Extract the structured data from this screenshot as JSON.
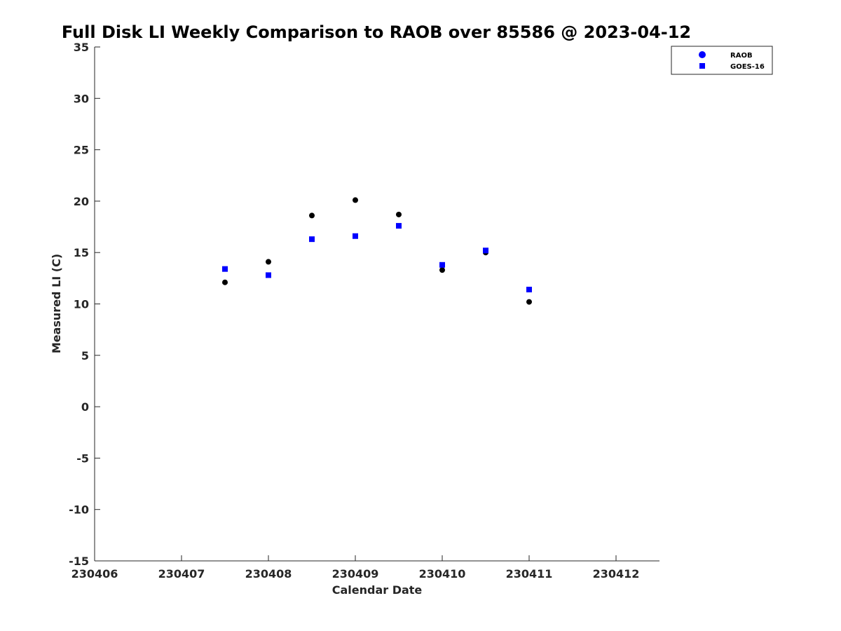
{
  "chart_data": {
    "type": "scatter",
    "title": "Full Disk LI Weekly Comparison to RAOB over 85586 @ 2023-04-12",
    "xlabel": "Calendar Date",
    "ylabel": "Measured LI (C)",
    "xlim": [
      230406,
      230412.5
    ],
    "ylim": [
      -15,
      35
    ],
    "xticks": [
      230406,
      230407,
      230408,
      230409,
      230410,
      230411,
      230412
    ],
    "xtick_labels": [
      "230406",
      "230407",
      "230408",
      "230409",
      "230410",
      "230411",
      "230412"
    ],
    "yticks": [
      -15,
      -10,
      -5,
      0,
      5,
      10,
      15,
      20,
      25,
      30,
      35
    ],
    "ytick_labels": [
      "-15",
      "-10",
      "-5",
      "0",
      "5",
      "10",
      "15",
      "20",
      "25",
      "30",
      "35"
    ],
    "grid": false,
    "legend_position": "top-right",
    "series": [
      {
        "name": "RAOB",
        "marker": "circle",
        "color": "#000000",
        "legend_color": "#0000ff",
        "x": [
          230407.5,
          230408,
          230408.5,
          230409,
          230409.5,
          230410,
          230410.5,
          230411
        ],
        "y": [
          12.1,
          14.1,
          18.6,
          20.1,
          18.7,
          13.3,
          15.0,
          10.2
        ]
      },
      {
        "name": "GOES-16",
        "marker": "square",
        "color": "#0000ff",
        "legend_color": "#0000ff",
        "x": [
          230407.5,
          230408,
          230408.5,
          230409,
          230409.5,
          230410,
          230410.5,
          230411
        ],
        "y": [
          13.4,
          12.8,
          16.3,
          16.6,
          17.6,
          13.8,
          15.2,
          11.4
        ]
      }
    ]
  }
}
